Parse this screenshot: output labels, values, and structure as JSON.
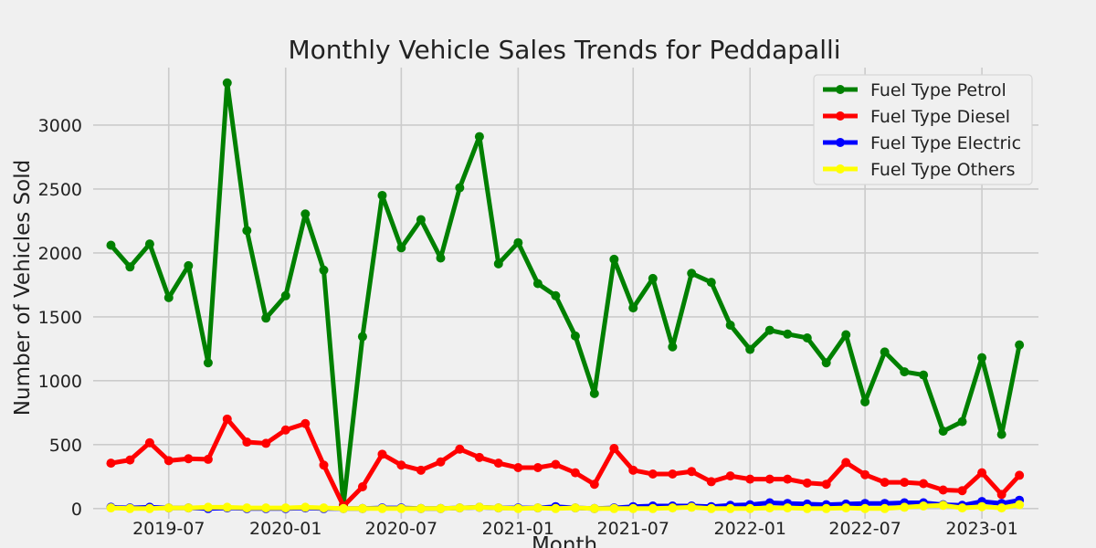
{
  "chart_data": {
    "type": "line",
    "title": "Monthly Vehicle Sales Trends for Peddapalli",
    "xlabel": "Month",
    "ylabel": "Number of Vehicles Sold",
    "ylim": [
      -80,
      3450
    ],
    "xlim": [
      "2019-03-04",
      "2023-03-31"
    ],
    "grid": true,
    "legend_position": "top-right",
    "x_ticks": [
      "2019-07",
      "2020-01",
      "2020-07",
      "2021-01",
      "2021-07",
      "2022-01",
      "2022-07",
      "2023-01"
    ],
    "y_ticks": [
      0,
      500,
      1000,
      1500,
      2000,
      2500,
      3000
    ],
    "x": [
      "2019-04",
      "2019-05",
      "2019-06",
      "2019-07",
      "2019-08",
      "2019-09",
      "2019-10",
      "2019-11",
      "2019-12",
      "2020-01",
      "2020-02",
      "2020-03",
      "2020-04",
      "2020-05",
      "2020-06",
      "2020-07",
      "2020-08",
      "2020-09",
      "2020-10",
      "2020-11",
      "2020-12",
      "2021-01",
      "2021-02",
      "2021-03",
      "2021-04",
      "2021-05",
      "2021-06",
      "2021-07",
      "2021-08",
      "2021-09",
      "2021-10",
      "2021-11",
      "2021-12",
      "2022-01",
      "2022-02",
      "2022-03",
      "2022-04",
      "2022-05",
      "2022-06",
      "2022-07",
      "2022-08",
      "2022-09",
      "2022-10",
      "2022-11",
      "2022-12",
      "2023-01",
      "2023-02",
      "2023-03"
    ],
    "series": [
      {
        "name": "Fuel Type Petrol",
        "color": "#008000",
        "values": [
          2060,
          1890,
          2070,
          1650,
          1900,
          1140,
          3330,
          2175,
          1490,
          1665,
          2305,
          1865,
          30,
          1345,
          2450,
          2040,
          2260,
          1960,
          2510,
          2910,
          1915,
          2080,
          1760,
          1665,
          1350,
          900,
          1950,
          1570,
          1800,
          1265,
          1840,
          1770,
          1435,
          1245,
          1395,
          1365,
          1335,
          1140,
          1360,
          835,
          1225,
          1070,
          1045,
          605,
          680,
          1180,
          580,
          1280
        ]
      },
      {
        "name": "Fuel Type Diesel",
        "color": "#ff0000",
        "values": [
          355,
          380,
          515,
          375,
          390,
          385,
          700,
          520,
          510,
          615,
          665,
          340,
          20,
          170,
          425,
          340,
          300,
          365,
          465,
          400,
          355,
          320,
          320,
          345,
          280,
          190,
          470,
          300,
          270,
          270,
          290,
          210,
          255,
          230,
          230,
          230,
          200,
          190,
          360,
          265,
          205,
          205,
          195,
          145,
          140,
          280,
          110,
          260
        ]
      },
      {
        "name": "Fuel Type Electric",
        "color": "#0000ff",
        "values": [
          10,
          5,
          10,
          5,
          5,
          0,
          5,
          0,
          0,
          0,
          5,
          0,
          0,
          0,
          5,
          5,
          0,
          0,
          5,
          10,
          5,
          5,
          5,
          15,
          5,
          0,
          5,
          15,
          20,
          20,
          20,
          15,
          25,
          30,
          45,
          40,
          35,
          30,
          35,
          40,
          40,
          45,
          45,
          30,
          25,
          55,
          40,
          65
        ]
      },
      {
        "name": "Fuel Type Others",
        "color": "#ffff00",
        "values": [
          5,
          0,
          0,
          5,
          5,
          10,
          10,
          5,
          5,
          5,
          10,
          5,
          0,
          0,
          0,
          0,
          0,
          0,
          5,
          10,
          5,
          0,
          5,
          0,
          5,
          0,
          0,
          0,
          0,
          5,
          10,
          0,
          0,
          0,
          5,
          5,
          0,
          0,
          5,
          0,
          0,
          10,
          20,
          25,
          5,
          15,
          5,
          30
        ]
      }
    ]
  }
}
